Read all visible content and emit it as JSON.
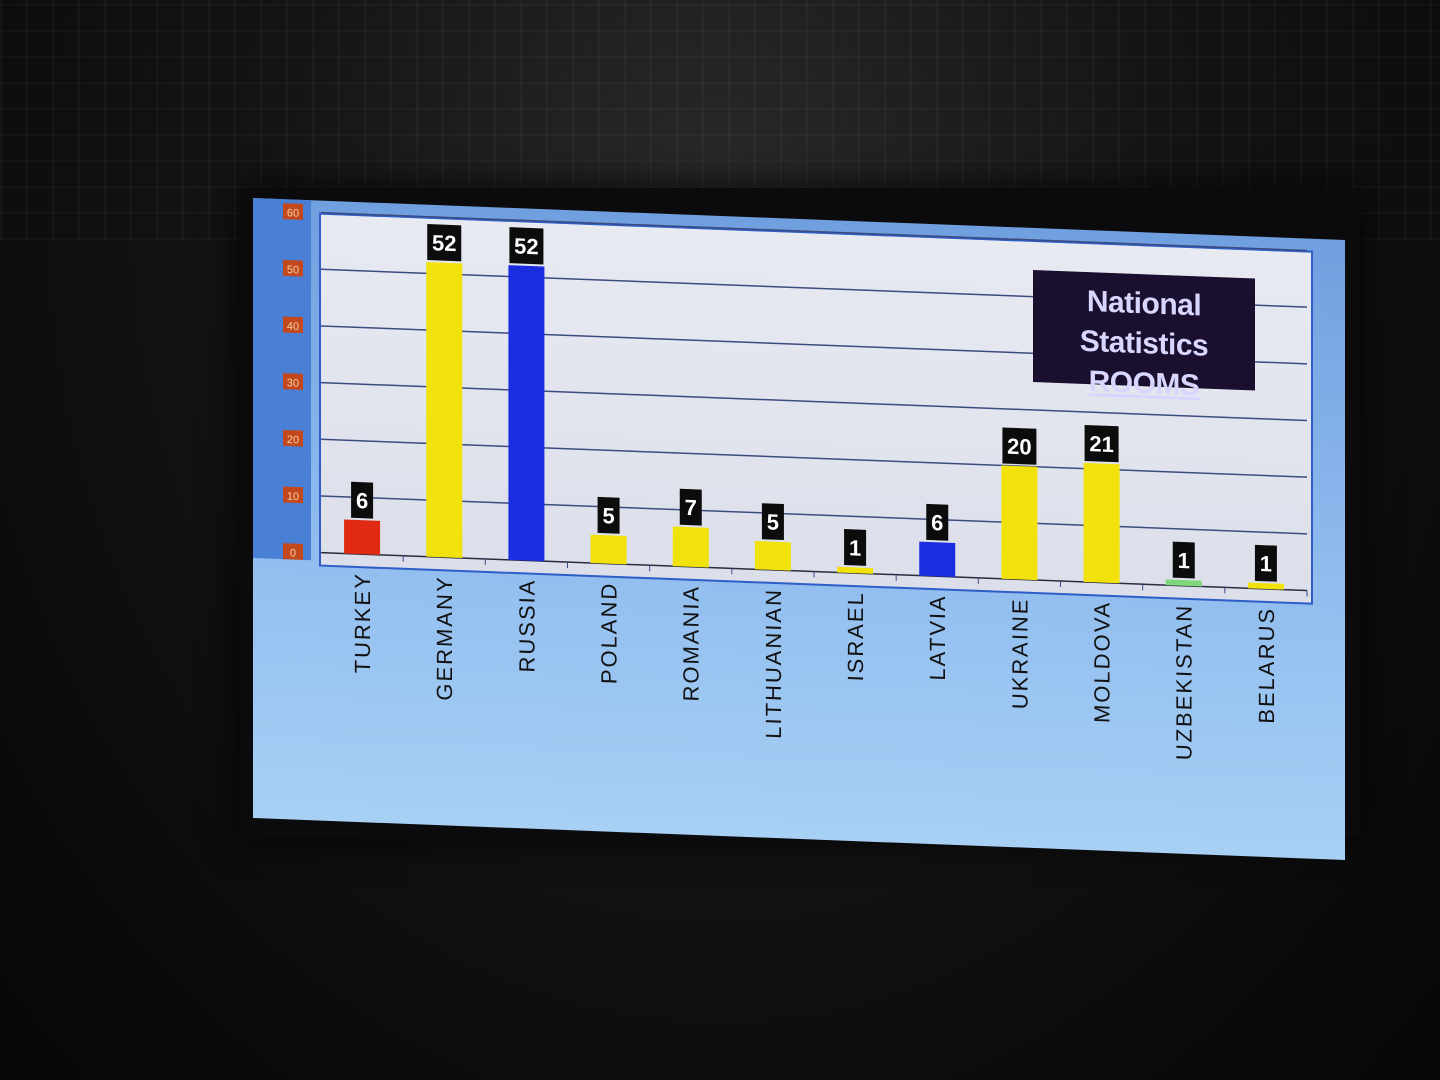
{
  "chart_data": {
    "type": "bar",
    "title": "National Statistics",
    "subtitle": "ROOMS",
    "categories": [
      "TURKEY",
      "GERMANY",
      "RUSSIA",
      "POLAND",
      "ROMANIA",
      "LITHUANIAN",
      "ISRAEL",
      "LATVIA",
      "UKRAINE",
      "MOLDOVA",
      "UZBEKISTAN",
      "BELARUS"
    ],
    "values": [
      6,
      52,
      52,
      5,
      7,
      5,
      1,
      6,
      20,
      21,
      1,
      1
    ],
    "bar_colors": [
      "#e02a14",
      "#f0e20a",
      "#1a2ee0",
      "#f0e20a",
      "#f0e20a",
      "#f0e20a",
      "#f0e20a",
      "#1a2ee0",
      "#f0e20a",
      "#f0e20a",
      "#7ed87a",
      "#f0e20a"
    ],
    "yticks": [
      0,
      10,
      20,
      30,
      40,
      50,
      60
    ],
    "ylim": [
      0,
      60
    ],
    "grid": true,
    "legend": "none"
  }
}
